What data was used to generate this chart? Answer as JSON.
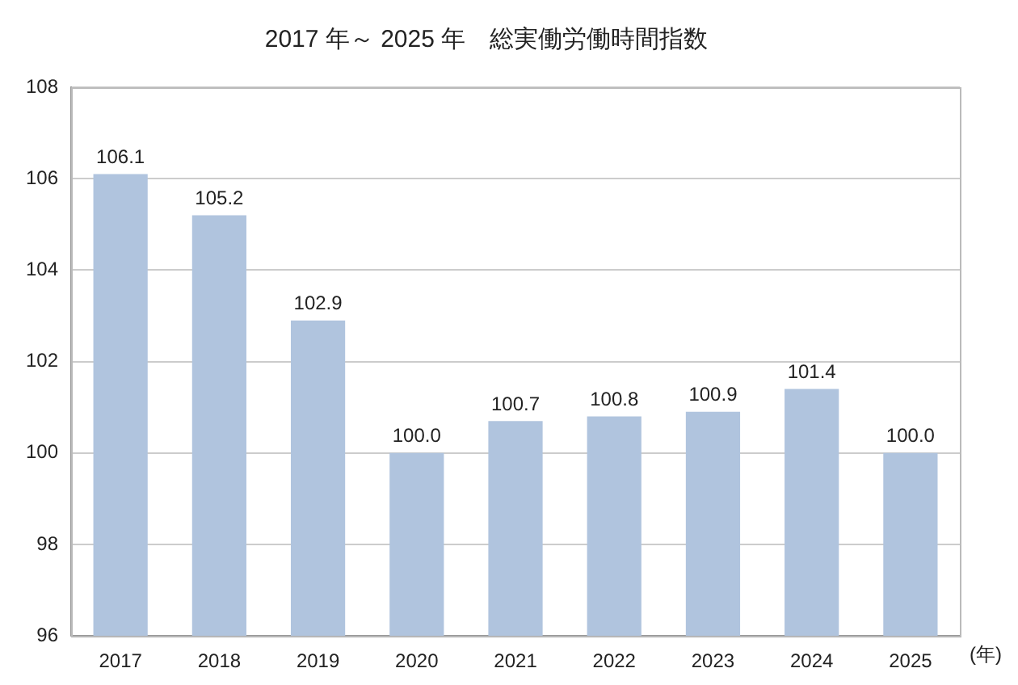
{
  "chart_data": {
    "type": "bar",
    "title": "2017 年～ 2025 年　総実働労働時間指数",
    "xlabel": "(年)",
    "categories": [
      "2017",
      "2018",
      "2019",
      "2020",
      "2021",
      "2022",
      "2023",
      "2024",
      "2025"
    ],
    "values": [
      106.1,
      105.2,
      102.9,
      100.0,
      100.7,
      100.8,
      100.9,
      101.4,
      100.0
    ],
    "value_labels": [
      "106.1",
      "105.2",
      "102.9",
      "100.0",
      "100.7",
      "100.8",
      "100.9",
      "101.4",
      "100.0"
    ],
    "color": "#b0c4de",
    "ylim": [
      96,
      108
    ],
    "yticks": [
      96,
      98,
      100,
      102,
      104,
      106,
      108
    ],
    "grid": "y",
    "legend": false
  }
}
